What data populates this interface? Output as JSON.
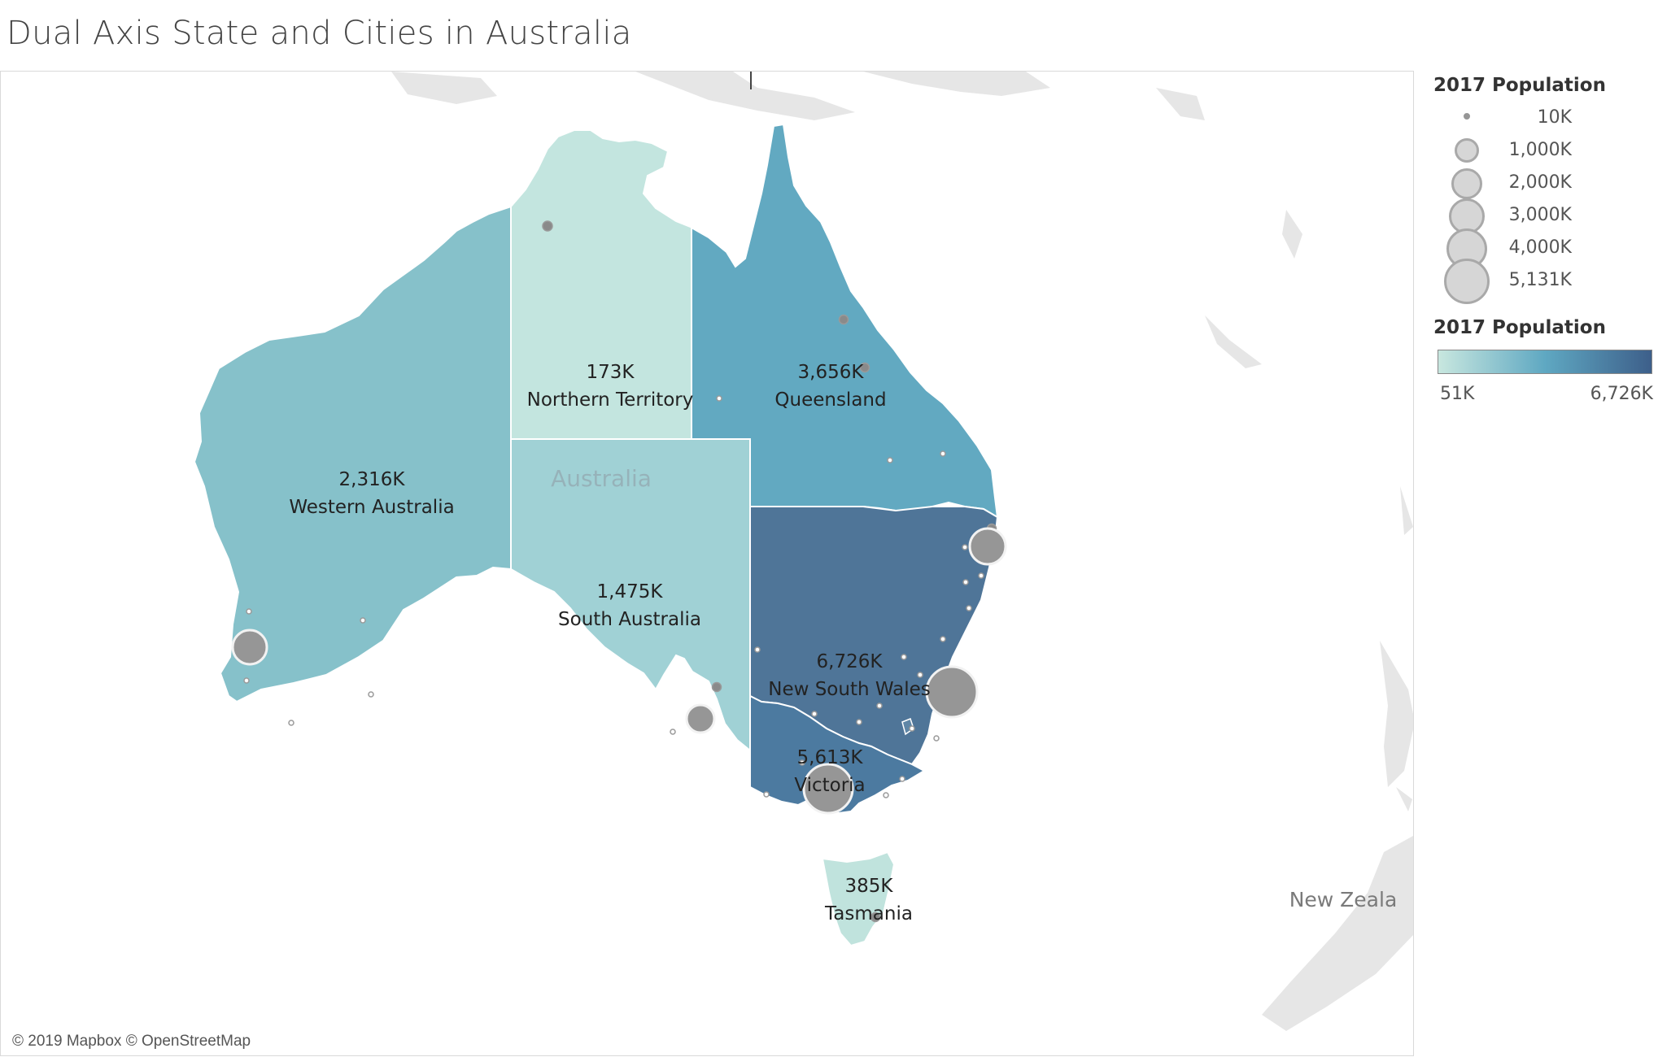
{
  "title": "Dual Axis State and Cities in Australia",
  "attribution": "© 2019 Mapbox © OpenStreetMap",
  "basemap_labels": {
    "country": "Australia",
    "new_zealand": "New Zeala"
  },
  "states": [
    {
      "id": "WA",
      "name": "Western Australia",
      "value_label": "2,316K",
      "population_k": 2316
    },
    {
      "id": "NT",
      "name": "Northern Territory",
      "value_label": "173K",
      "population_k": 173
    },
    {
      "id": "QLD",
      "name": "Queensland",
      "value_label": "3,656K",
      "population_k": 3656
    },
    {
      "id": "SA",
      "name": "South Australia",
      "value_label": "1,475K",
      "population_k": 1475
    },
    {
      "id": "NSW",
      "name": "New South Wales",
      "value_label": "6,726K",
      "population_k": 6726
    },
    {
      "id": "VIC",
      "name": "Victoria",
      "value_label": "5,613K",
      "population_k": 5613
    },
    {
      "id": "TAS",
      "name": "Tasmania",
      "value_label": "385K",
      "population_k": 385
    }
  ],
  "size_legend": {
    "title": "2017 Population",
    "entries": [
      {
        "label": "10K",
        "value_k": 10
      },
      {
        "label": "1,000K",
        "value_k": 1000
      },
      {
        "label": "2,000K",
        "value_k": 2000
      },
      {
        "label": "3,000K",
        "value_k": 3000
      },
      {
        "label": "4,000K",
        "value_k": 4000
      },
      {
        "label": "5,131K",
        "value_k": 5131
      }
    ]
  },
  "color_legend": {
    "title": "2017 Population",
    "min_label": "51K",
    "max_label": "6,726K",
    "min_value_k": 51,
    "max_value_k": 6726,
    "color_low": "#c8e7df",
    "color_mid": "#5fa8c2",
    "color_high": "#3d5f8a"
  },
  "colors": {
    "land": "#e5e5e5",
    "bubble_fill": "#969696",
    "bubble_stroke": "#f2f2f2",
    "state_border": "#ffffff"
  }
}
